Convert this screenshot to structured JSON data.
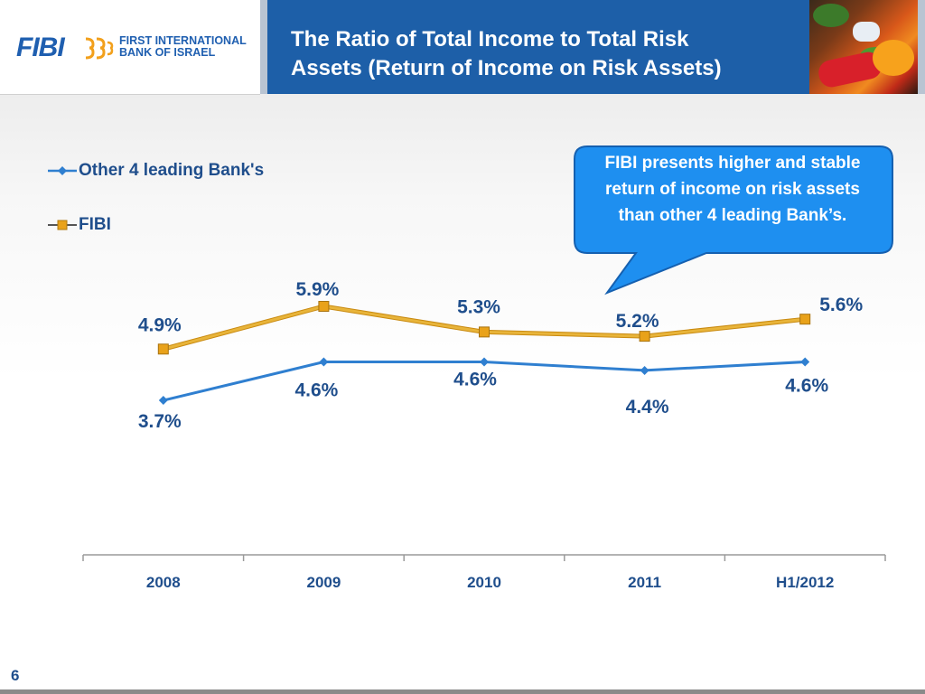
{
  "header": {
    "logo": {
      "mark": "FIBI",
      "name_line1": "FIRST INTERNATIONAL",
      "name_line2": "BANK OF ISRAEL"
    },
    "title_line1": "The Ratio of Total Income to Total Risk",
    "title_line2": "Assets (Return of Income on Risk Assets)"
  },
  "callout": {
    "text": "FIBI presents higher and stable return of income on risk assets than other 4 leading Bank’s."
  },
  "page_number": "6",
  "colors": {
    "brand_blue": "#1d5fa8",
    "other_banks_line": "#2f7fd0",
    "fibi_line": "#e8b43a",
    "fibi_marker": "#e9a21a",
    "label_text": "#1f4e8c",
    "callout_fill": "#1e8ff0"
  },
  "chart_data": {
    "type": "line",
    "categories": [
      "2008",
      "2009",
      "2010",
      "2011",
      "H1/2012"
    ],
    "series": [
      {
        "name": "Other 4 leading Bank's",
        "marker": "diamond",
        "values": [
          3.7,
          4.6,
          4.6,
          4.4,
          4.6
        ],
        "labels": [
          "3.7%",
          "4.6%",
          "4.6%",
          "4.4%",
          "4.6%"
        ]
      },
      {
        "name": "FIBI",
        "marker": "square",
        "values": [
          4.9,
          5.9,
          5.3,
          5.2,
          5.6
        ],
        "labels": [
          "4.9%",
          "5.9%",
          "5.3%",
          "5.2%",
          "5.6%"
        ]
      }
    ],
    "title": "",
    "xlabel": "",
    "ylabel": "",
    "legend": "top-left",
    "grid": false,
    "y_axis_visible": false
  }
}
